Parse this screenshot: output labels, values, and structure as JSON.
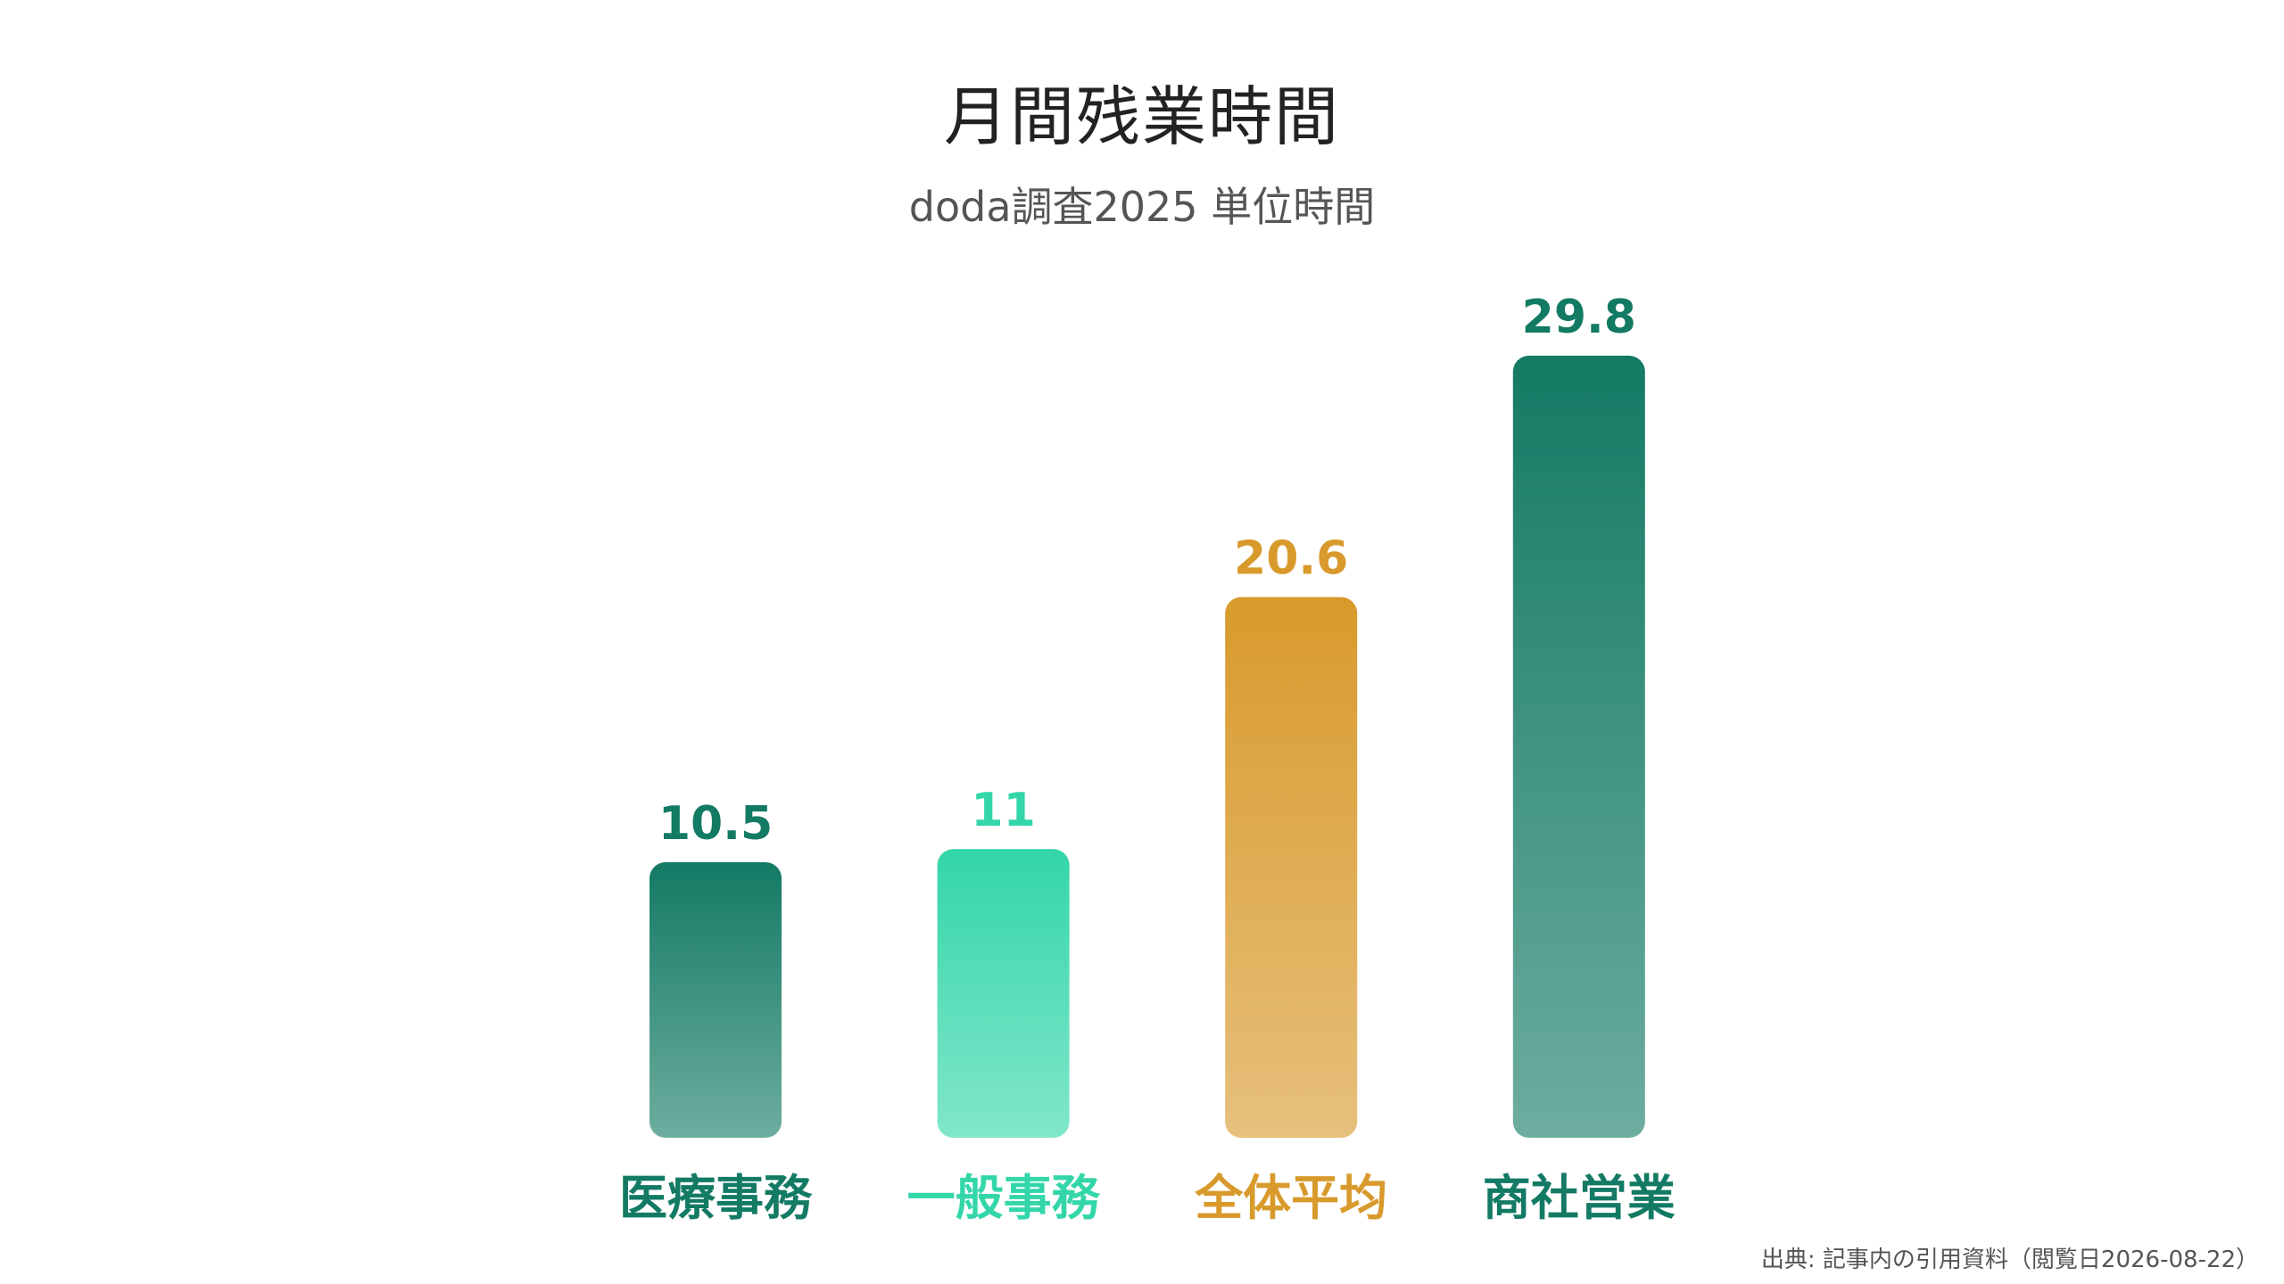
{
  "chart_data": {
    "type": "bar",
    "title": "月間残業時間",
    "subtitle": "doda調査2025 単位時間",
    "categories": [
      "医療事務",
      "一般事務",
      "全体平均",
      "商社営業"
    ],
    "values": [
      10.5,
      11,
      20.6,
      29.8
    ],
    "value_labels": [
      "10.5",
      "11",
      "20.6",
      "29.8"
    ],
    "colors": [
      "#137a64",
      "#33d6a9",
      "#d89a2c",
      "#137a64"
    ],
    "ylim": [
      0,
      30
    ],
    "grid": false,
    "legend": "none",
    "xlabel": "",
    "ylabel": ""
  },
  "source_note": "出典: 記事内の引用資料（閲覧日2026-08-22）"
}
